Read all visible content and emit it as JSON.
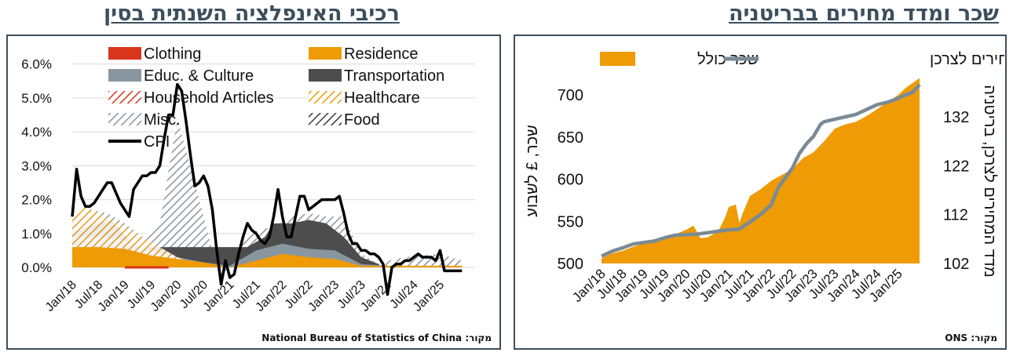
{
  "headings": {
    "left": "רכיבי האינפלציה השנתית בסין",
    "right": "שכר ומדד מחירים בבריטניה"
  },
  "sources": {
    "left": "מקור: National Bureau of Statistics of China",
    "right": "מקור: ONS"
  },
  "colors": {
    "clothing": "#d9351c",
    "residence": "#ee9b06",
    "educ": "#8896a0",
    "transport": "#4d4d4d",
    "household": "#d9351c",
    "healthcare": "#ee9b06",
    "misc": "#8896a0",
    "food": "#3a3a3a",
    "cpi": "#000000",
    "wage": "#ee9b06",
    "uk_cpi": "#7a8a96",
    "frame": "#3c4f5e"
  },
  "chart_data": [
    {
      "type": "area",
      "title": "רכיבי האינפלציה השנתית בסין",
      "ylim": [
        -0.3,
        6.2
      ],
      "y_ticks": [
        "0.0%",
        "1.0%",
        "2.0%",
        "3.0%",
        "4.0%",
        "5.0%",
        "6.0%"
      ],
      "x_ticks": [
        "Jan/18",
        "Jul/18",
        "Jan/19",
        "Jul/19",
        "Jan/20",
        "Jul/20",
        "Jan/21",
        "Jul/21",
        "Jan/22",
        "Jul/22",
        "Jan/23",
        "Jul/23",
        "Jan/24",
        "Jul/24",
        "Jan/25"
      ],
      "legend": [
        "Clothing",
        "Residence",
        "Educ. & Culture",
        "Transportation",
        "Household Articles",
        "Healthcare",
        "Misc.",
        "Food",
        "CPI"
      ],
      "x_range": [
        0,
        92
      ],
      "series": [
        {
          "name": "CPI",
          "points": [
            [
              0,
              1.5
            ],
            [
              1,
              2.9
            ],
            [
              2,
              2.1
            ],
            [
              3,
              1.8
            ],
            [
              4,
              1.8
            ],
            [
              5,
              1.9
            ],
            [
              6,
              2.1
            ],
            [
              7,
              2.3
            ],
            [
              8,
              2.5
            ],
            [
              9,
              2.5
            ],
            [
              10,
              2.2
            ],
            [
              11,
              1.9
            ],
            [
              12,
              1.7
            ],
            [
              13,
              1.5
            ],
            [
              14,
              2.3
            ],
            [
              15,
              2.5
            ],
            [
              16,
              2.7
            ],
            [
              17,
              2.7
            ],
            [
              18,
              2.8
            ],
            [
              19,
              2.8
            ],
            [
              20,
              3.0
            ],
            [
              21,
              3.8
            ],
            [
              22,
              4.5
            ],
            [
              23,
              4.5
            ],
            [
              24,
              5.4
            ],
            [
              25,
              5.2
            ],
            [
              26,
              4.3
            ],
            [
              27,
              3.3
            ],
            [
              28,
              2.4
            ],
            [
              29,
              2.5
            ],
            [
              30,
              2.7
            ],
            [
              31,
              2.4
            ],
            [
              32,
              1.7
            ],
            [
              33,
              0.5
            ],
            [
              34,
              -0.5
            ],
            [
              35,
              0.2
            ],
            [
              36,
              -0.3
            ],
            [
              37,
              -0.2
            ],
            [
              38,
              0.4
            ],
            [
              39,
              0.9
            ],
            [
              40,
              1.3
            ],
            [
              41,
              1.1
            ],
            [
              42,
              1.0
            ],
            [
              43,
              0.8
            ],
            [
              44,
              0.7
            ],
            [
              45,
              0.9
            ],
            [
              46,
              1.5
            ],
            [
              47,
              2.3
            ],
            [
              48,
              1.5
            ],
            [
              49,
              0.9
            ],
            [
              50,
              0.9
            ],
            [
              51,
              1.5
            ],
            [
              52,
              2.1
            ],
            [
              53,
              2.1
            ],
            [
              54,
              1.7
            ],
            [
              55,
              1.8
            ],
            [
              56,
              1.9
            ],
            [
              57,
              2.0
            ],
            [
              58,
              2.0
            ],
            [
              59,
              2.0
            ],
            [
              60,
              2.0
            ],
            [
              61,
              2.1
            ],
            [
              62,
              1.6
            ],
            [
              63,
              1.0
            ],
            [
              64,
              0.7
            ],
            [
              65,
              0.7
            ],
            [
              66,
              0.5
            ],
            [
              67,
              0.5
            ],
            [
              68,
              0.4
            ],
            [
              69,
              0.4
            ],
            [
              70,
              0.3
            ],
            [
              71,
              0.1
            ],
            [
              72,
              -0.8
            ],
            [
              73,
              0.0
            ],
            [
              74,
              0.1
            ],
            [
              75,
              0.1
            ],
            [
              76,
              0.2
            ],
            [
              77,
              0.2
            ],
            [
              78,
              0.3
            ],
            [
              79,
              0.4
            ],
            [
              80,
              0.3
            ],
            [
              81,
              0.3
            ],
            [
              82,
              0.3
            ],
            [
              83,
              0.2
            ],
            [
              84,
              0.5
            ],
            [
              85,
              -0.1
            ],
            [
              86,
              -0.1
            ],
            [
              87,
              -0.1
            ],
            [
              88,
              -0.1
            ],
            [
              89,
              -0.1
            ]
          ]
        },
        {
          "name": "Residence",
          "points": [
            [
              0,
              0.6
            ],
            [
              6,
              0.6
            ],
            [
              12,
              0.55
            ],
            [
              18,
              0.35
            ],
            [
              24,
              0.25
            ],
            [
              30,
              0.15
            ],
            [
              36,
              0.0
            ],
            [
              42,
              0.2
            ],
            [
              48,
              0.4
            ],
            [
              54,
              0.3
            ],
            [
              60,
              0.25
            ],
            [
              66,
              0.05
            ],
            [
              72,
              0.05
            ],
            [
              78,
              0.05
            ],
            [
              84,
              0.05
            ],
            [
              89,
              0.05
            ]
          ]
        },
        {
          "name": "Misc.+Food",
          "points": [
            [
              0,
              1.5
            ],
            [
              4,
              1.7
            ],
            [
              8,
              1.6
            ],
            [
              12,
              1.3
            ],
            [
              16,
              0.9
            ],
            [
              20,
              1.3
            ],
            [
              24,
              4.4
            ],
            [
              28,
              2.5
            ],
            [
              32,
              0.5
            ],
            [
              34,
              -0.3
            ],
            [
              36,
              0.0
            ],
            [
              40,
              1.0
            ],
            [
              46,
              1.2
            ],
            [
              50,
              1.5
            ],
            [
              54,
              1.6
            ],
            [
              58,
              1.5
            ],
            [
              62,
              1.5
            ],
            [
              66,
              0.4
            ],
            [
              70,
              0.1
            ],
            [
              72,
              0.2
            ],
            [
              76,
              0.3
            ],
            [
              84,
              0.4
            ],
            [
              89,
              0.2
            ]
          ]
        }
      ]
    },
    {
      "type": "line",
      "title": "שכר ומדד מחירים בבריטניה",
      "legend": [
        "שכר כולל",
        "מדד המחירים לצרכן"
      ],
      "ylabel_left": "שכר, £ לשבוע",
      "ylabel_right": "מדד המחירים לצרכן, בריטניה",
      "ylim_left": [
        500,
        720
      ],
      "ylim_right": [
        102,
        144
      ],
      "y_ticks_left": [
        "500",
        "550",
        "600",
        "650",
        "700"
      ],
      "y_ticks_right": [
        "102",
        "112",
        "122",
        "132"
      ],
      "x_ticks": [
        "Jan/18",
        "Jul/18",
        "Jan/19",
        "Jul/19",
        "Jan/20",
        "Jul/20",
        "Jan/21",
        "Jul/21",
        "Jan/22",
        "Jul/22",
        "Jan/23",
        "Jul/23",
        "Jan/24",
        "Jul/24",
        "Jan/25"
      ],
      "x_range": [
        0,
        90
      ],
      "series": [
        {
          "name": "שכר כולל",
          "points": [
            [
              0,
              506
            ],
            [
              3,
              512
            ],
            [
              6,
              515
            ],
            [
              9,
              520
            ],
            [
              12,
              524
            ],
            [
              15,
              528
            ],
            [
              18,
              532
            ],
            [
              21,
              535
            ],
            [
              24,
              540
            ],
            [
              26,
              545
            ],
            [
              28,
              530
            ],
            [
              30,
              531
            ],
            [
              33,
              538
            ],
            [
              35,
              555
            ],
            [
              36,
              567
            ],
            [
              38,
              570
            ],
            [
              39,
              548
            ],
            [
              40,
              560
            ],
            [
              42,
              580
            ],
            [
              45,
              588
            ],
            [
              48,
              598
            ],
            [
              51,
              605
            ],
            [
              54,
              612
            ],
            [
              57,
              625
            ],
            [
              60,
              632
            ],
            [
              63,
              645
            ],
            [
              66,
              660
            ],
            [
              69,
              665
            ],
            [
              72,
              668
            ],
            [
              75,
              675
            ],
            [
              78,
              683
            ],
            [
              81,
              692
            ],
            [
              84,
              700
            ],
            [
              86,
              708
            ],
            [
              88,
              714
            ],
            [
              90,
              720
            ]
          ]
        },
        {
          "name": "מדד המחירים לצרכן",
          "points": [
            [
              0,
              103.5
            ],
            [
              3,
              104.5
            ],
            [
              6,
              105.2
            ],
            [
              9,
              106.0
            ],
            [
              12,
              106.3
            ],
            [
              15,
              106.6
            ],
            [
              18,
              107.3
            ],
            [
              21,
              107.8
            ],
            [
              24,
              107.9
            ],
            [
              27,
              108.0
            ],
            [
              30,
              108.3
            ],
            [
              33,
              108.6
            ],
            [
              36,
              108.9
            ],
            [
              39,
              109.0
            ],
            [
              42,
              110.5
            ],
            [
              45,
              112.0
            ],
            [
              48,
              114.0
            ],
            [
              50,
              117.5
            ],
            [
              52,
              119.5
            ],
            [
              54,
              121.5
            ],
            [
              56,
              124.5
            ],
            [
              58,
              126.5
            ],
            [
              60,
              128.0
            ],
            [
              62,
              130.5
            ],
            [
              63,
              131.0
            ],
            [
              66,
              131.5
            ],
            [
              69,
              132.0
            ],
            [
              72,
              132.5
            ],
            [
              75,
              133.5
            ],
            [
              78,
              134.5
            ],
            [
              81,
              135.0
            ],
            [
              84,
              135.8
            ],
            [
              86,
              136.5
            ],
            [
              88,
              137.0
            ],
            [
              90,
              138.6
            ]
          ]
        }
      ]
    }
  ]
}
